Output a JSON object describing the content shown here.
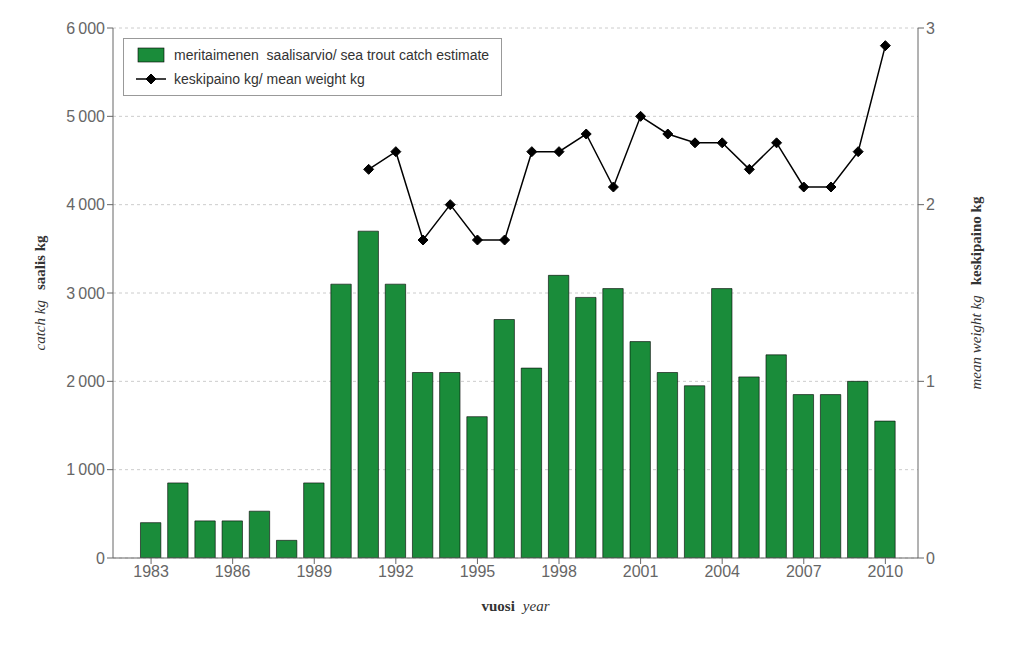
{
  "chart_data": {
    "type": "bar",
    "xlabel": [
      "vuosi",
      "year"
    ],
    "ylabel": [
      "saalis kg",
      "catch kg"
    ],
    "y2label": [
      "keskipaino kg",
      "mean weight kg"
    ],
    "x": [
      1983,
      1984,
      1985,
      1986,
      1987,
      1988,
      1989,
      1990,
      1991,
      1992,
      1993,
      1994,
      1995,
      1996,
      1997,
      1998,
      1999,
      2000,
      2001,
      2002,
      2003,
      2004,
      2005,
      2006,
      2007,
      2008,
      2009,
      2010
    ],
    "series": [
      {
        "name": "meritaimenen  saalisarvio/ sea trout catch estimate",
        "type": "bar",
        "color": "#1a8c3a",
        "values": [
          400,
          850,
          420,
          420,
          530,
          200,
          850,
          3100,
          3700,
          3100,
          2100,
          2100,
          1600,
          2700,
          2150,
          3200,
          2950,
          3050,
          2450,
          2100,
          1950,
          3050,
          2050,
          2300,
          1850,
          1850,
          2000,
          1550
        ]
      },
      {
        "name": "keskipaino kg/ mean weight kg",
        "type": "line",
        "axis": "y2",
        "color": "#000000",
        "marker": "diamond",
        "values": [
          null,
          null,
          null,
          null,
          null,
          null,
          null,
          null,
          2.2,
          2.3,
          1.8,
          2.0,
          1.8,
          1.8,
          2.3,
          2.3,
          2.4,
          2.1,
          2.5,
          2.4,
          2.35,
          2.35,
          2.2,
          2.35,
          2.1,
          2.1,
          2.3,
          2.9
        ]
      }
    ],
    "xlim": [
      1981.6,
      2011.2
    ],
    "xticks": [
      1983,
      1986,
      1989,
      1992,
      1995,
      1998,
      2001,
      2004,
      2007,
      2010
    ],
    "ylim": [
      0,
      6000
    ],
    "yticks": [
      0,
      {
        "value": 1000,
        "label": "1 000"
      },
      {
        "value": 2000,
        "label": "2 000"
      },
      {
        "value": 3000,
        "label": "3 000"
      },
      {
        "value": 4000,
        "label": "4 000"
      },
      {
        "value": 5000,
        "label": "5 000"
      },
      {
        "value": 6000,
        "label": "6 000"
      }
    ],
    "y2lim": [
      0,
      3
    ],
    "y2ticks": [
      0,
      1,
      2,
      3
    ],
    "grid": true,
    "legend": "upper left"
  }
}
